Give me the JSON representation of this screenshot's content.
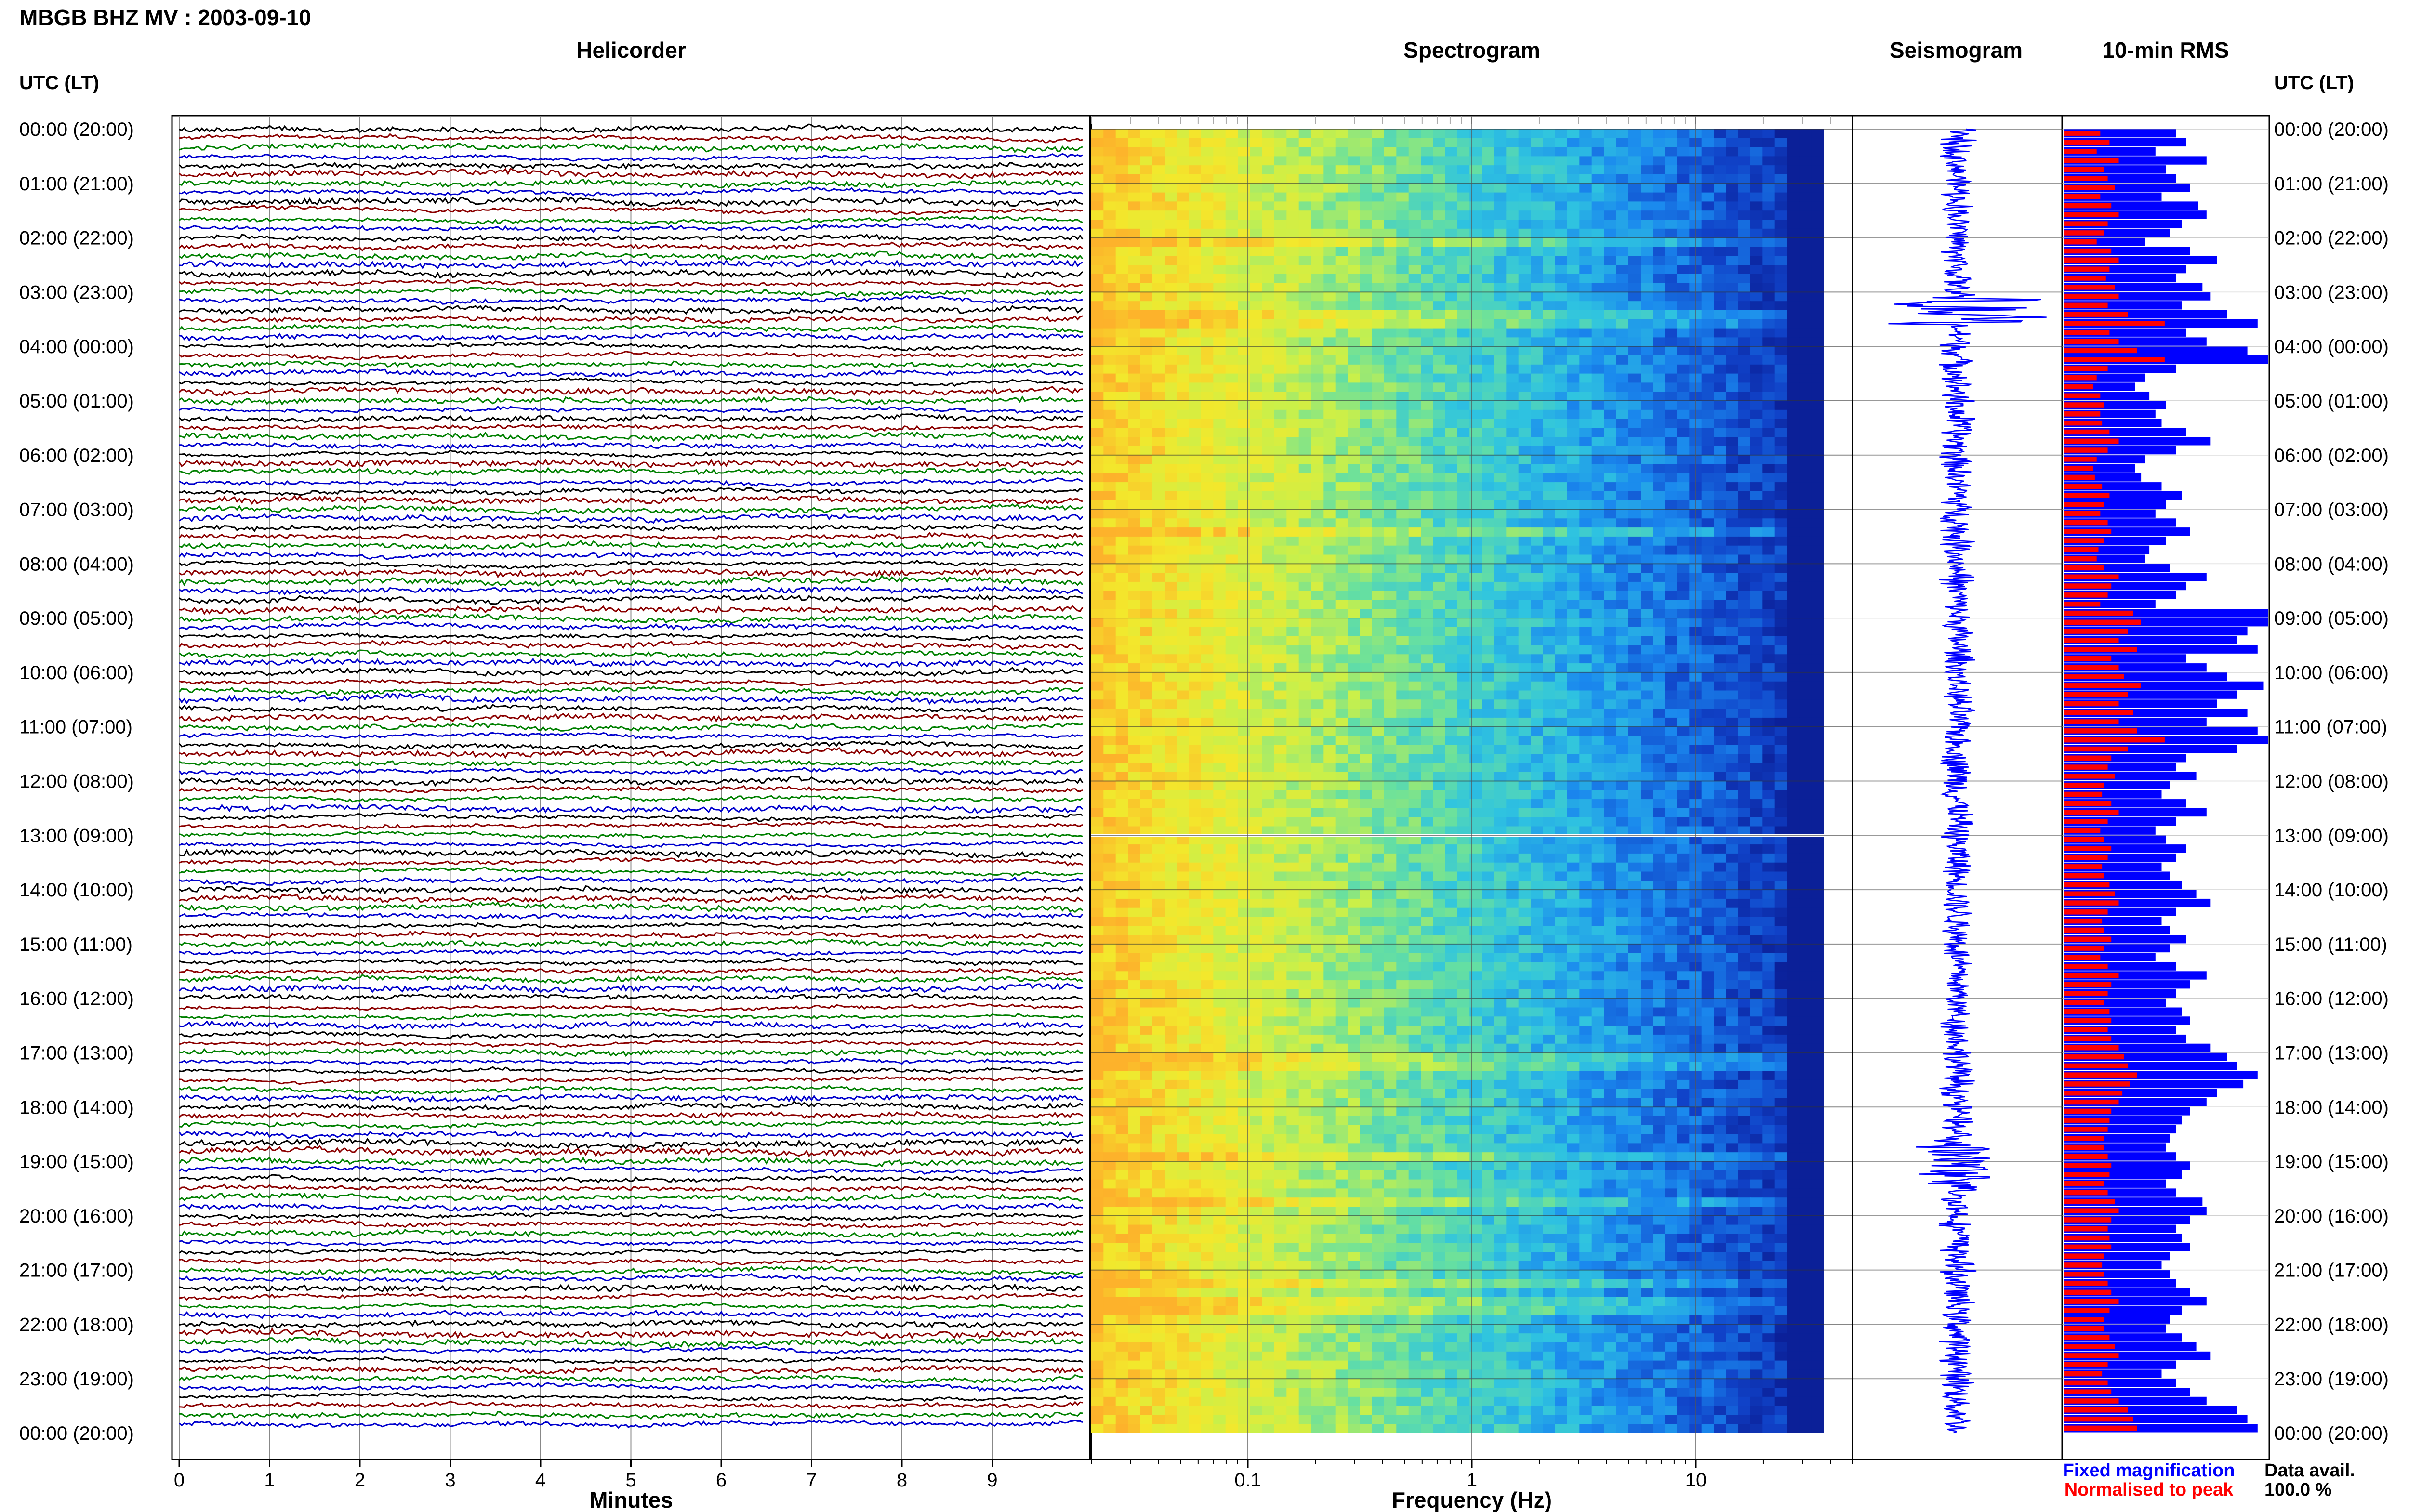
{
  "figure": {
    "title": "MBGB BHZ MV : 2003-09-10",
    "panels": {
      "helicorder": "Helicorder",
      "spectrogram": "Spectrogram",
      "seismogram": "Seismogram",
      "rms": "10-min RMS"
    },
    "left_axis_label": "UTC (LT)",
    "right_axis_label": "UTC (LT)",
    "legend": {
      "fixed": "Fixed magnification",
      "normalised": "Normalised to peak",
      "fixed_color": "#0000ff",
      "normalised_color": "#ff0000"
    },
    "data_avail": {
      "label": "Data avail.",
      "value": "100.0 %"
    }
  },
  "chart_data": [
    {
      "type": "line",
      "panel": "helicorder",
      "xlabel": "Minutes",
      "x_ticks": [
        "0",
        "1",
        "2",
        "3",
        "4",
        "5",
        "6",
        "7",
        "8",
        "9"
      ],
      "xlim": [
        0,
        10
      ],
      "row_time_labels": [
        "00:00 (20:00)",
        "01:00 (21:00)",
        "02:00 (22:00)",
        "03:00 (23:00)",
        "04:00 (00:00)",
        "05:00 (01:00)",
        "06:00 (02:00)",
        "07:00 (03:00)",
        "08:00 (04:00)",
        "09:00 (05:00)",
        "10:00 (06:00)",
        "11:00 (07:00)",
        "12:00 (08:00)",
        "13:00 (09:00)",
        "14:00 (10:00)",
        "15:00 (11:00)",
        "16:00 (12:00)",
        "17:00 (13:00)",
        "18:00 (14:00)",
        "19:00 (15:00)",
        "20:00 (16:00)",
        "21:00 (17:00)",
        "22:00 (18:00)",
        "23:00 (19:00)",
        "00:00 (20:00)"
      ],
      "rows_per_hour": 6,
      "trace_colors": [
        "#000000",
        "#8b0000",
        "#008000",
        "#0000cd"
      ]
    },
    {
      "type": "heatmap",
      "panel": "spectrogram",
      "xlabel": "Frequency (Hz)",
      "x_scale": "log",
      "xlim": [
        0.02,
        50
      ],
      "x_ticks": [
        "0.1",
        "1",
        "10"
      ],
      "x_tick_values": [
        0.1,
        1,
        10
      ],
      "colormap": [
        "#fdb22b",
        "#f3e82c",
        "#c9f04a",
        "#67e0a0",
        "#2fc4e0",
        "#1a88ee",
        "#1042c8",
        "#0a1a90"
      ]
    },
    {
      "type": "line",
      "panel": "seismogram",
      "color": "#0000ff"
    },
    {
      "type": "bar",
      "panel": "rms",
      "series": [
        {
          "name": "Fixed magnification",
          "color": "#0000ff",
          "values": [
            0.55,
            0.6,
            0.45,
            0.7,
            0.5,
            0.55,
            0.62,
            0.48,
            0.66,
            0.7,
            0.58,
            0.52,
            0.4,
            0.62,
            0.75,
            0.6,
            0.55,
            0.68,
            0.72,
            0.58,
            0.8,
            0.95,
            0.6,
            0.7,
            0.9,
            1.0,
            0.55,
            0.4,
            0.35,
            0.42,
            0.5,
            0.45,
            0.48,
            0.6,
            0.72,
            0.55,
            0.4,
            0.35,
            0.38,
            0.48,
            0.58,
            0.5,
            0.45,
            0.55,
            0.62,
            0.5,
            0.42,
            0.4,
            0.52,
            0.7,
            0.6,
            0.55,
            0.45,
            1.0,
            1.0,
            0.9,
            0.85,
            0.95,
            0.6,
            0.7,
            0.8,
            0.98,
            0.85,
            0.75,
            0.9,
            0.7,
            0.95,
            1.0,
            0.85,
            0.6,
            0.55,
            0.65,
            0.52,
            0.48,
            0.6,
            0.7,
            0.55,
            0.45,
            0.5,
            0.6,
            0.55,
            0.48,
            0.52,
            0.58,
            0.65,
            0.72,
            0.55,
            0.48,
            0.52,
            0.6,
            0.52,
            0.45,
            0.55,
            0.7,
            0.62,
            0.55,
            0.5,
            0.58,
            0.62,
            0.55,
            0.6,
            0.72,
            0.8,
            0.85,
            0.95,
            0.88,
            0.75,
            0.7,
            0.62,
            0.58,
            0.55,
            0.52,
            0.5,
            0.55,
            0.62,
            0.58,
            0.5,
            0.55,
            0.68,
            0.7,
            0.62,
            0.55,
            0.58,
            0.62,
            0.52,
            0.48,
            0.52,
            0.55,
            0.62,
            0.7,
            0.58,
            0.52,
            0.5,
            0.58,
            0.65,
            0.72,
            0.55,
            0.48,
            0.55,
            0.62,
            0.7,
            0.85,
            0.9,
            0.95
          ]
        },
        {
          "name": "Normalised to peak",
          "color": "#ff0000",
          "values": [
            0.2,
            0.25,
            0.18,
            0.3,
            0.22,
            0.24,
            0.28,
            0.2,
            0.26,
            0.3,
            0.24,
            0.22,
            0.18,
            0.26,
            0.3,
            0.25,
            0.23,
            0.28,
            0.3,
            0.24,
            0.35,
            0.55,
            0.25,
            0.3,
            0.4,
            0.55,
            0.24,
            0.18,
            0.16,
            0.2,
            0.22,
            0.2,
            0.21,
            0.25,
            0.3,
            0.24,
            0.18,
            0.16,
            0.17,
            0.21,
            0.25,
            0.22,
            0.2,
            0.24,
            0.26,
            0.22,
            0.19,
            0.18,
            0.22,
            0.3,
            0.26,
            0.24,
            0.2,
            0.38,
            0.42,
            0.35,
            0.3,
            0.4,
            0.26,
            0.3,
            0.33,
            0.42,
            0.35,
            0.3,
            0.38,
            0.3,
            0.4,
            0.55,
            0.35,
            0.26,
            0.24,
            0.28,
            0.22,
            0.21,
            0.26,
            0.3,
            0.24,
            0.2,
            0.22,
            0.26,
            0.24,
            0.21,
            0.22,
            0.25,
            0.28,
            0.3,
            0.24,
            0.21,
            0.22,
            0.26,
            0.22,
            0.2,
            0.24,
            0.3,
            0.26,
            0.24,
            0.22,
            0.25,
            0.26,
            0.24,
            0.26,
            0.3,
            0.33,
            0.35,
            0.4,
            0.36,
            0.32,
            0.3,
            0.26,
            0.25,
            0.24,
            0.22,
            0.22,
            0.24,
            0.26,
            0.25,
            0.22,
            0.24,
            0.28,
            0.3,
            0.26,
            0.24,
            0.25,
            0.26,
            0.22,
            0.21,
            0.22,
            0.24,
            0.26,
            0.3,
            0.25,
            0.22,
            0.22,
            0.25,
            0.28,
            0.3,
            0.24,
            0.21,
            0.24,
            0.26,
            0.3,
            0.35,
            0.38,
            0.4
          ]
        }
      ]
    }
  ]
}
